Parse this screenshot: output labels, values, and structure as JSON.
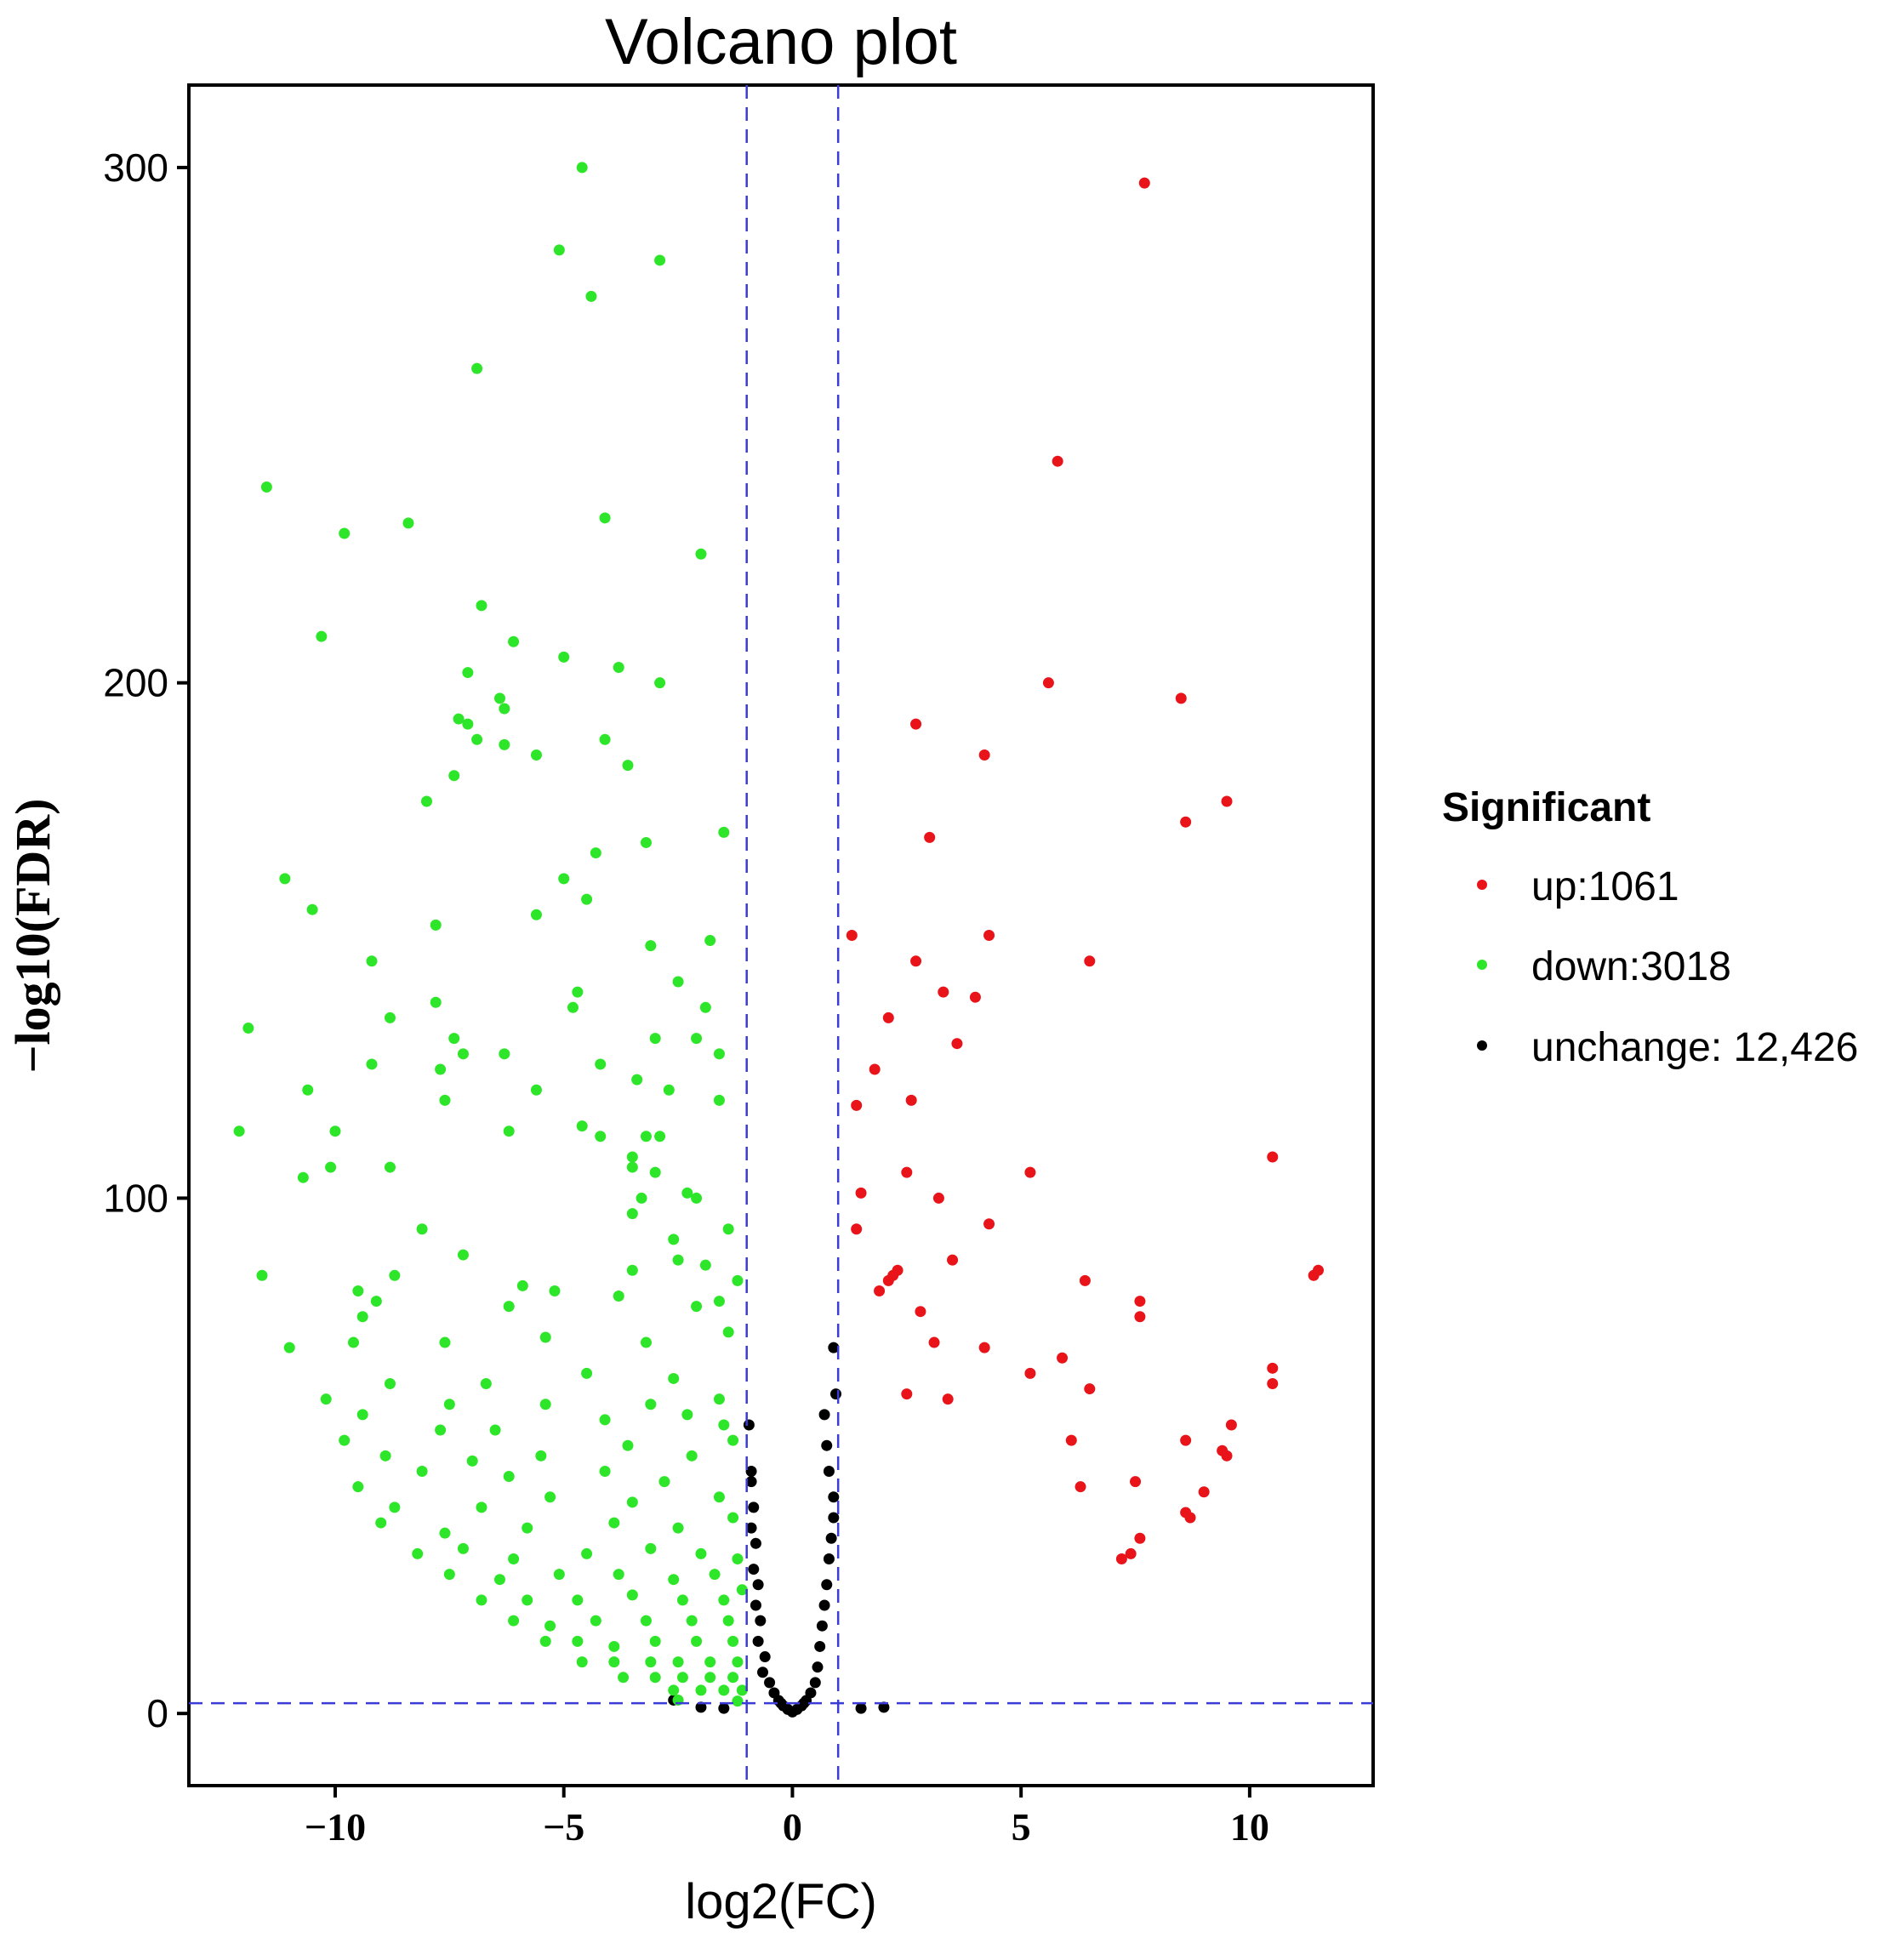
{
  "chart_data": {
    "type": "scatter",
    "title": "Volcano plot",
    "xlabel": "log2(FC)",
    "ylabel": "−log10(FDR)",
    "xlim": [
      -13.2,
      12.7
    ],
    "ylim": [
      -14,
      316
    ],
    "xticks": [
      -10,
      -5,
      0,
      5,
      10
    ],
    "xtick_labels": [
      "−10",
      "−5",
      "0",
      "5",
      "10"
    ],
    "yticks": [
      0,
      100,
      200,
      300
    ],
    "ytick_labels": [
      "0",
      "100",
      "200",
      "300"
    ],
    "grid": false,
    "thresholds": {
      "vlines": [
        -1,
        1
      ],
      "hline": 2
    },
    "legend": {
      "title": "Significant",
      "position": "right",
      "entries": [
        {
          "key": "up",
          "label": "up:1061",
          "color": "#e8141a"
        },
        {
          "key": "down",
          "label": "down:3018",
          "color": "#2ee629"
        },
        {
          "key": "unchange",
          "label": "unchange: 12,426",
          "color": "#000000"
        }
      ]
    },
    "series": [
      {
        "name": "up",
        "color": "#e8141a",
        "points": [
          [
            7.7,
            297
          ],
          [
            5.8,
            243
          ],
          [
            5.6,
            200
          ],
          [
            8.5,
            197
          ],
          [
            9.5,
            177
          ],
          [
            8.6,
            173
          ],
          [
            2.7,
            192
          ],
          [
            4.2,
            186
          ],
          [
            3,
            170
          ],
          [
            1.3,
            151
          ],
          [
            4.3,
            151
          ],
          [
            6.5,
            146
          ],
          [
            2.7,
            146
          ],
          [
            3.3,
            140
          ],
          [
            4,
            139
          ],
          [
            2.1,
            135
          ],
          [
            3.6,
            130
          ],
          [
            1.8,
            125
          ],
          [
            2.6,
            119
          ],
          [
            1.4,
            118
          ],
          [
            10.5,
            108
          ],
          [
            5.2,
            105
          ],
          [
            2.5,
            105
          ],
          [
            1.5,
            101
          ],
          [
            3.2,
            100
          ],
          [
            1.4,
            94
          ],
          [
            4.3,
            95
          ],
          [
            3.5,
            88
          ],
          [
            2.3,
            86
          ],
          [
            2.1,
            84
          ],
          [
            2.2,
            85
          ],
          [
            1.9,
            82
          ],
          [
            6.4,
            84
          ],
          [
            11.5,
            86
          ],
          [
            11.4,
            85
          ],
          [
            7.6,
            80
          ],
          [
            7.6,
            77
          ],
          [
            2.8,
            78
          ],
          [
            3.1,
            72
          ],
          [
            4.2,
            71
          ],
          [
            5.9,
            69
          ],
          [
            5.2,
            66
          ],
          [
            10.5,
            67
          ],
          [
            10.5,
            64
          ],
          [
            6.5,
            63
          ],
          [
            2.5,
            62
          ],
          [
            3.4,
            61
          ],
          [
            9.6,
            56
          ],
          [
            8.6,
            53
          ],
          [
            6.1,
            53
          ],
          [
            9.4,
            51
          ],
          [
            9.5,
            50
          ],
          [
            7.5,
            45
          ],
          [
            6.3,
            44
          ],
          [
            9,
            43
          ],
          [
            8.6,
            39
          ],
          [
            8.7,
            38
          ],
          [
            7.6,
            34
          ],
          [
            7.4,
            31
          ],
          [
            7.2,
            30
          ]
        ]
      },
      {
        "name": "down",
        "color": "#2ee629",
        "points": [
          [
            -4.6,
            300
          ],
          [
            -5.1,
            284
          ],
          [
            -2.9,
            282
          ],
          [
            -4.4,
            275
          ],
          [
            -6.9,
            261
          ],
          [
            -11.5,
            238
          ],
          [
            -9.8,
            229
          ],
          [
            -8.4,
            231
          ],
          [
            -4.1,
            232
          ],
          [
            -2,
            225
          ],
          [
            -6.8,
            215
          ],
          [
            -10.3,
            209
          ],
          [
            -6.1,
            208
          ],
          [
            -5,
            205
          ],
          [
            -3.8,
            203
          ],
          [
            -7.1,
            202
          ],
          [
            -2.9,
            200
          ],
          [
            -6.4,
            197
          ],
          [
            -6.3,
            195
          ],
          [
            -7.3,
            193
          ],
          [
            -7.1,
            192
          ],
          [
            -6.9,
            189
          ],
          [
            -6.3,
            188
          ],
          [
            -4.1,
            189
          ],
          [
            -5.6,
            186
          ],
          [
            -3.6,
            184
          ],
          [
            -7.4,
            182
          ],
          [
            -8,
            177
          ],
          [
            -1.5,
            171
          ],
          [
            -3.2,
            169
          ],
          [
            -4.3,
            167
          ],
          [
            -11.1,
            162
          ],
          [
            -5,
            162
          ],
          [
            -10.5,
            156
          ],
          [
            -5.6,
            155
          ],
          [
            -4.5,
            158
          ],
          [
            -7.8,
            153
          ],
          [
            -1.8,
            150
          ],
          [
            -3.1,
            149
          ],
          [
            -9.2,
            146
          ],
          [
            -2.5,
            142
          ],
          [
            -4.7,
            140
          ],
          [
            -8.8,
            135
          ],
          [
            -7.8,
            138
          ],
          [
            -4.8,
            137
          ],
          [
            -1.9,
            137
          ],
          [
            -11.9,
            133
          ],
          [
            -2.1,
            131
          ],
          [
            -7.4,
            131
          ],
          [
            -3.0,
            131
          ],
          [
            -7.2,
            128
          ],
          [
            -9.2,
            126
          ],
          [
            -6.3,
            128
          ],
          [
            -4.2,
            126
          ],
          [
            -1.6,
            128
          ],
          [
            -7.7,
            125
          ],
          [
            -3.4,
            123
          ],
          [
            -10.6,
            121
          ],
          [
            -5.6,
            121
          ],
          [
            -2.7,
            121
          ],
          [
            -7.6,
            119
          ],
          [
            -1.6,
            119
          ],
          [
            -12.1,
            113
          ],
          [
            -10,
            113
          ],
          [
            -6.2,
            113
          ],
          [
            -4.6,
            114
          ],
          [
            -4.2,
            112
          ],
          [
            -3.2,
            112
          ],
          [
            -2.9,
            112
          ],
          [
            -3.5,
            108
          ],
          [
            -10.1,
            106
          ],
          [
            -8.8,
            106
          ],
          [
            -3.5,
            106
          ],
          [
            -3.0,
            105
          ],
          [
            -10.7,
            104
          ],
          [
            -3.3,
            100
          ],
          [
            -2.3,
            101
          ],
          [
            -2.1,
            100
          ],
          [
            -3.5,
            97
          ],
          [
            -8.1,
            94
          ],
          [
            -2.6,
            92
          ],
          [
            -1.4,
            94
          ],
          [
            -11.6,
            85
          ],
          [
            -9.5,
            82
          ],
          [
            -8.7,
            85
          ],
          [
            -7.2,
            89
          ],
          [
            -5.9,
            83
          ],
          [
            -5.2,
            82
          ],
          [
            -3.5,
            86
          ],
          [
            -2.5,
            88
          ],
          [
            -1.9,
            87
          ],
          [
            -1.2,
            84
          ],
          [
            -9.1,
            80
          ],
          [
            -9.4,
            77
          ],
          [
            -6.2,
            79
          ],
          [
            -3.8,
            81
          ],
          [
            -2.1,
            79
          ],
          [
            -1.6,
            80
          ],
          [
            -9.6,
            72
          ],
          [
            -7.6,
            72
          ],
          [
            -5.4,
            73
          ],
          [
            -3.2,
            72
          ],
          [
            -11,
            71
          ],
          [
            -1.4,
            74
          ],
          [
            -2.6,
            65
          ],
          [
            -4.5,
            66
          ],
          [
            -6.7,
            64
          ],
          [
            -8.8,
            64
          ],
          [
            -7.5,
            60
          ],
          [
            -5.4,
            60
          ],
          [
            -3.1,
            60
          ],
          [
            -1.6,
            61
          ],
          [
            -10.2,
            61
          ],
          [
            -9.4,
            58
          ],
          [
            -6.5,
            55
          ],
          [
            -4.1,
            57
          ],
          [
            -2.3,
            58
          ],
          [
            -9.8,
            53
          ],
          [
            -7.7,
            55
          ],
          [
            -3.6,
            52
          ],
          [
            -1.5,
            56
          ],
          [
            -8.9,
            50
          ],
          [
            -7,
            49
          ],
          [
            -5.5,
            50
          ],
          [
            -2.2,
            50
          ],
          [
            -1.3,
            53
          ],
          [
            -9.5,
            44
          ],
          [
            -8.1,
            47
          ],
          [
            -6.2,
            46
          ],
          [
            -4.1,
            47
          ],
          [
            -2.8,
            45
          ],
          [
            -8.7,
            40
          ],
          [
            -6.8,
            40
          ],
          [
            -5.3,
            42
          ],
          [
            -3.5,
            41
          ],
          [
            -1.6,
            42
          ],
          [
            -9.0,
            37
          ],
          [
            -7.6,
            35
          ],
          [
            -5.8,
            36
          ],
          [
            -3.9,
            37
          ],
          [
            -2.5,
            36
          ],
          [
            -1.3,
            38
          ],
          [
            -8.2,
            31
          ],
          [
            -7.2,
            32
          ],
          [
            -6.1,
            30
          ],
          [
            -4.5,
            31
          ],
          [
            -3.1,
            32
          ],
          [
            -2.0,
            31
          ],
          [
            -1.2,
            30
          ],
          [
            -7.5,
            27
          ],
          [
            -6.4,
            26
          ],
          [
            -5.1,
            27
          ],
          [
            -3.8,
            27
          ],
          [
            -2.6,
            26
          ],
          [
            -1.7,
            27
          ],
          [
            -6.8,
            22
          ],
          [
            -5.8,
            22
          ],
          [
            -4.7,
            22
          ],
          [
            -3.5,
            23
          ],
          [
            -2.4,
            22
          ],
          [
            -1.5,
            22
          ],
          [
            -1.1,
            24
          ],
          [
            -6.1,
            18
          ],
          [
            -5.3,
            17
          ],
          [
            -4.3,
            18
          ],
          [
            -3.2,
            18
          ],
          [
            -2.2,
            18
          ],
          [
            -1.4,
            18
          ],
          [
            -5.4,
            14
          ],
          [
            -4.7,
            14
          ],
          [
            -3.9,
            13
          ],
          [
            -3.0,
            14
          ],
          [
            -2.1,
            14
          ],
          [
            -1.3,
            14
          ],
          [
            -4.6,
            10
          ],
          [
            -3.9,
            10
          ],
          [
            -3.1,
            10
          ],
          [
            -2.5,
            10
          ],
          [
            -1.8,
            10
          ],
          [
            -1.2,
            10
          ],
          [
            -3.7,
            7
          ],
          [
            -3.0,
            7
          ],
          [
            -2.4,
            7
          ],
          [
            -1.8,
            7
          ],
          [
            -1.3,
            7
          ],
          [
            -2.6,
            4.5
          ],
          [
            -2.0,
            4.5
          ],
          [
            -1.5,
            4.5
          ],
          [
            -1.1,
            4.5
          ],
          [
            -2.5,
            2.6
          ],
          [
            -1.2,
            2.4
          ]
        ]
      },
      {
        "name": "unchange",
        "color": "#000000",
        "points": [
          [
            -0.95,
            56
          ],
          [
            -0.9,
            47
          ],
          [
            -0.9,
            45
          ],
          [
            -0.85,
            40
          ],
          [
            -0.9,
            36
          ],
          [
            -0.8,
            33
          ],
          [
            -0.85,
            28
          ],
          [
            -0.75,
            25
          ],
          [
            -0.8,
            21
          ],
          [
            -0.7,
            18
          ],
          [
            -0.75,
            14
          ],
          [
            -0.6,
            11
          ],
          [
            -0.65,
            8
          ],
          [
            -0.5,
            6
          ],
          [
            -0.4,
            4
          ],
          [
            -0.3,
            2.5
          ],
          [
            -0.2,
            1.5
          ],
          [
            -0.1,
            0.8
          ],
          [
            0,
            0.3
          ],
          [
            0.1,
            0.8
          ],
          [
            0.2,
            1.5
          ],
          [
            0.3,
            2.5
          ],
          [
            0.4,
            4
          ],
          [
            0.5,
            6
          ],
          [
            0.55,
            9
          ],
          [
            0.6,
            13
          ],
          [
            0.65,
            17
          ],
          [
            0.7,
            21
          ],
          [
            0.75,
            25
          ],
          [
            0.8,
            30
          ],
          [
            0.85,
            34
          ],
          [
            0.9,
            38
          ],
          [
            0.9,
            42
          ],
          [
            0.8,
            47
          ],
          [
            0.75,
            52
          ],
          [
            0.7,
            58
          ],
          [
            0.95,
            62
          ],
          [
            0.9,
            71
          ],
          [
            -0.25,
            2
          ],
          [
            0.25,
            2
          ],
          [
            -1.5,
            1
          ],
          [
            -2,
            1.2
          ],
          [
            1.5,
            1
          ],
          [
            2,
            1.2
          ],
          [
            -2.6,
            2.6
          ]
        ]
      }
    ]
  }
}
